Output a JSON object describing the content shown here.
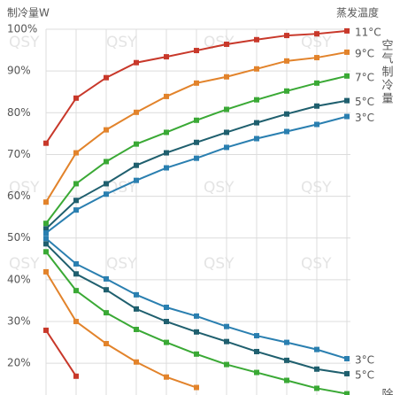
{
  "chart_data": {
    "type": "line",
    "title": "制冷量W",
    "legend_title": "蒸发温度",
    "watermark": "QSY",
    "annotations": [
      "空气制冷量",
      "除"
    ],
    "categories": [
      null,
      null,
      null,
      null,
      null,
      null,
      null,
      null,
      null,
      null,
      null
    ],
    "ylim": [
      12.4,
      100
    ],
    "yticks": [
      {
        "value": 20,
        "label": "20%"
      },
      {
        "value": 30,
        "label": "30%"
      },
      {
        "value": 40,
        "label": "40%"
      },
      {
        "value": 50,
        "label": "50%"
      },
      {
        "value": 60,
        "label": "60%"
      },
      {
        "value": 70,
        "label": "70%"
      },
      {
        "value": 80,
        "label": "80%"
      },
      {
        "value": 90,
        "label": "90%"
      },
      {
        "value": 100,
        "label": "100%"
      }
    ],
    "grid": true,
    "series": [
      {
        "name": "11°C",
        "color": "#c8382a",
        "values": [
          72.7,
          83.5,
          88.4,
          92,
          93.4,
          94.9,
          96.4,
          97.5,
          98.5,
          98.9,
          99.6
        ]
      },
      {
        "name": "9°C",
        "color": "#e2832b",
        "values": [
          58.6,
          70.4,
          75.9,
          80.1,
          83.9,
          87.1,
          88.6,
          90.5,
          92.4,
          93.2,
          94.5
        ]
      },
      {
        "name": "7°C",
        "color": "#3aa935",
        "values": [
          53.5,
          63,
          68.3,
          72.5,
          75.3,
          78.2,
          80.8,
          83.1,
          85.2,
          87.1,
          88.8
        ]
      },
      {
        "name": "5°C",
        "color": "#1f5f6e",
        "values": [
          52.2,
          59,
          63,
          67.4,
          70.4,
          72.9,
          75.3,
          77.6,
          79.7,
          81.6,
          82.9
        ]
      },
      {
        "name": "3°C",
        "color": "#2a7fb0",
        "values": [
          51.2,
          56.7,
          60.5,
          63.8,
          66.8,
          69.1,
          71.7,
          73.8,
          75.5,
          77.2,
          79.1
        ]
      },
      {
        "name": "3°C",
        "color": "#2a7fb0",
        "values": [
          49.9,
          43.8,
          40.2,
          36.4,
          33.4,
          31.3,
          28.8,
          26.6,
          25,
          23.3,
          21.1
        ]
      },
      {
        "name": "5°C",
        "color": "#1f5f6e",
        "values": [
          48.6,
          41.4,
          37.6,
          33,
          30,
          27.5,
          25.2,
          22.8,
          20.7,
          18.6,
          17.5
        ]
      },
      {
        "color": "#3aa935",
        "values": [
          46.7,
          37.4,
          32.1,
          28.1,
          25,
          22.2,
          19.7,
          17.8,
          15.9,
          14,
          12.7
        ]
      },
      {
        "color": "#e2832b",
        "values": [
          41.9,
          30,
          24.7,
          20.3,
          16.7,
          14.2,
          null,
          null,
          null,
          null,
          null
        ]
      },
      {
        "color": "#c8382a",
        "values": [
          27.9,
          16.9,
          null,
          null,
          null,
          null,
          null,
          null,
          null,
          null,
          null
        ]
      }
    ]
  }
}
